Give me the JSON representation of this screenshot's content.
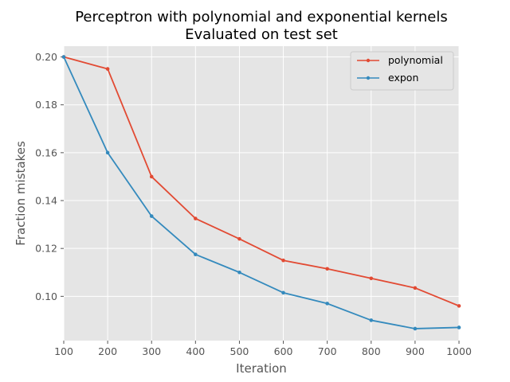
{
  "chart_data": {
    "type": "line",
    "title_lines": [
      "Perceptron with polynomial and exponential kernels",
      "Evaluated on test set"
    ],
    "xlabel": "Iteration",
    "ylabel": "Fraction mistakes",
    "x": [
      100,
      200,
      300,
      400,
      500,
      600,
      700,
      800,
      900,
      1000
    ],
    "xlim": [
      100,
      1000
    ],
    "ylim": [
      0.0815,
      0.2045
    ],
    "xticks": [
      "100",
      "200",
      "300",
      "400",
      "500",
      "600",
      "700",
      "800",
      "900",
      "1000"
    ],
    "yticks": [
      "0.10",
      "0.12",
      "0.14",
      "0.16",
      "0.18",
      "0.20"
    ],
    "grid": true,
    "legend_position": "top-right",
    "series": [
      {
        "name": "polynomial",
        "color": "#E24A33",
        "values": [
          0.2,
          0.195,
          0.15,
          0.1325,
          0.124,
          0.115,
          0.1115,
          0.1075,
          0.1035,
          0.096
        ]
      },
      {
        "name": "expon",
        "color": "#348ABD",
        "values": [
          0.2,
          0.16,
          0.1335,
          0.1175,
          0.11,
          0.1015,
          0.097,
          0.09,
          0.0865,
          0.087
        ]
      }
    ]
  }
}
